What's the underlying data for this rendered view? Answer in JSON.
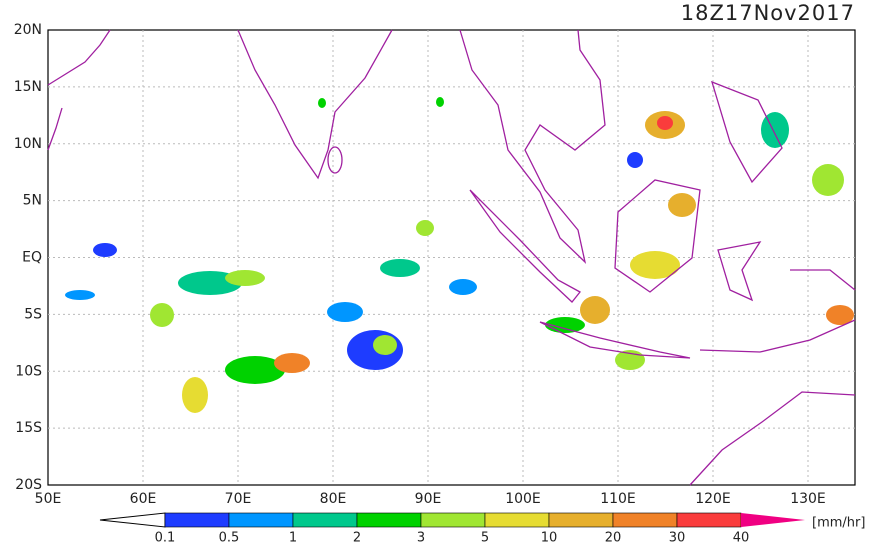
{
  "header": {
    "title": "18Z17Nov2017"
  },
  "map": {
    "lat_labels": [
      "20N",
      "15N",
      "10N",
      "5N",
      "EQ",
      "5S",
      "10S",
      "15S",
      "20S"
    ],
    "lon_labels": [
      "50E",
      "60E",
      "70E",
      "80E",
      "90E",
      "100E",
      "110E",
      "120E",
      "130E"
    ]
  },
  "colorbar": {
    "labels": [
      "0.1",
      "0.5",
      "1",
      "2",
      "3",
      "5",
      "10",
      "20",
      "30",
      "40"
    ],
    "colors": [
      "#1e3cff",
      "#0096ff",
      "#00c88c",
      "#00d200",
      "#a0e632",
      "#e6dc32",
      "#e6af2d",
      "#f08228",
      "#fa3c3c"
    ],
    "over_color": "#f00082",
    "unit": "[mm/hr]"
  }
}
